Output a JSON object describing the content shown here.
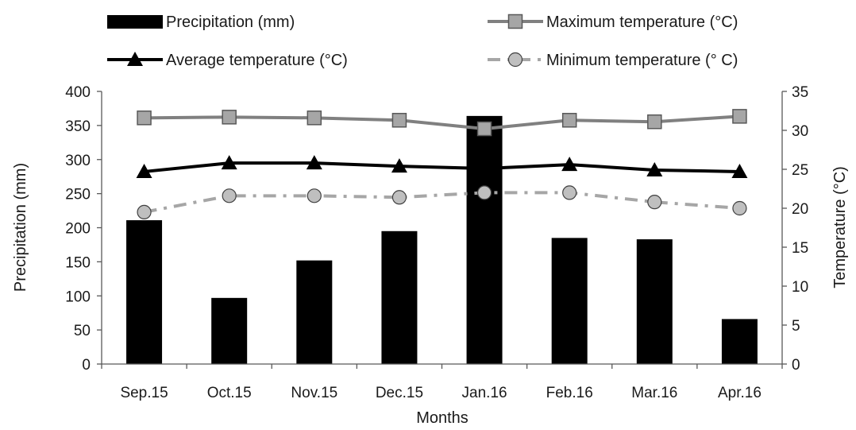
{
  "chart_data": {
    "type": "bar+line",
    "categories": [
      "Sep.15",
      "Oct.15",
      "Nov.15",
      "Dec.15",
      "Jan.16",
      "Feb.16",
      "Mar.16",
      "Apr.16"
    ],
    "xlabel": "Months",
    "y_left": {
      "label": "Precipitation (mm)",
      "range": [
        0,
        400
      ],
      "ticks": [
        0,
        50,
        100,
        150,
        200,
        250,
        300,
        350,
        400
      ]
    },
    "y_right": {
      "label": "Temperature (°C)",
      "range": [
        0,
        35
      ],
      "ticks": [
        0,
        5,
        10,
        15,
        20,
        25,
        30,
        35
      ]
    },
    "series": [
      {
        "name": "Precipitation (mm)",
        "type": "bar",
        "axis": "left",
        "color": "#000000",
        "values": [
          211,
          97,
          152,
          195,
          364,
          185,
          183,
          66
        ]
      },
      {
        "name": "Maximum temperature (°C)",
        "type": "line",
        "axis": "right",
        "color": "#808080",
        "marker": "square",
        "marker_fill": "#a6a6a6",
        "dash": "solid",
        "values": [
          31.6,
          31.7,
          31.6,
          31.3,
          30.2,
          31.3,
          31.1,
          31.8
        ]
      },
      {
        "name": "Average temperature (°C)",
        "type": "line",
        "axis": "right",
        "color": "#000000",
        "marker": "triangle",
        "marker_fill": "#000000",
        "dash": "solid",
        "values": [
          24.7,
          25.8,
          25.8,
          25.4,
          25.1,
          25.6,
          24.9,
          24.7
        ]
      },
      {
        "name": "Minimum temperature (° C)",
        "type": "line",
        "axis": "right",
        "color": "#a6a6a6",
        "marker": "circle",
        "marker_fill": "#bfbfbf",
        "dash": "dashdot",
        "values": [
          19.5,
          21.6,
          21.6,
          21.4,
          22.0,
          22.0,
          20.8,
          20.0
        ]
      }
    ],
    "legend_position": "top",
    "grid": false
  }
}
